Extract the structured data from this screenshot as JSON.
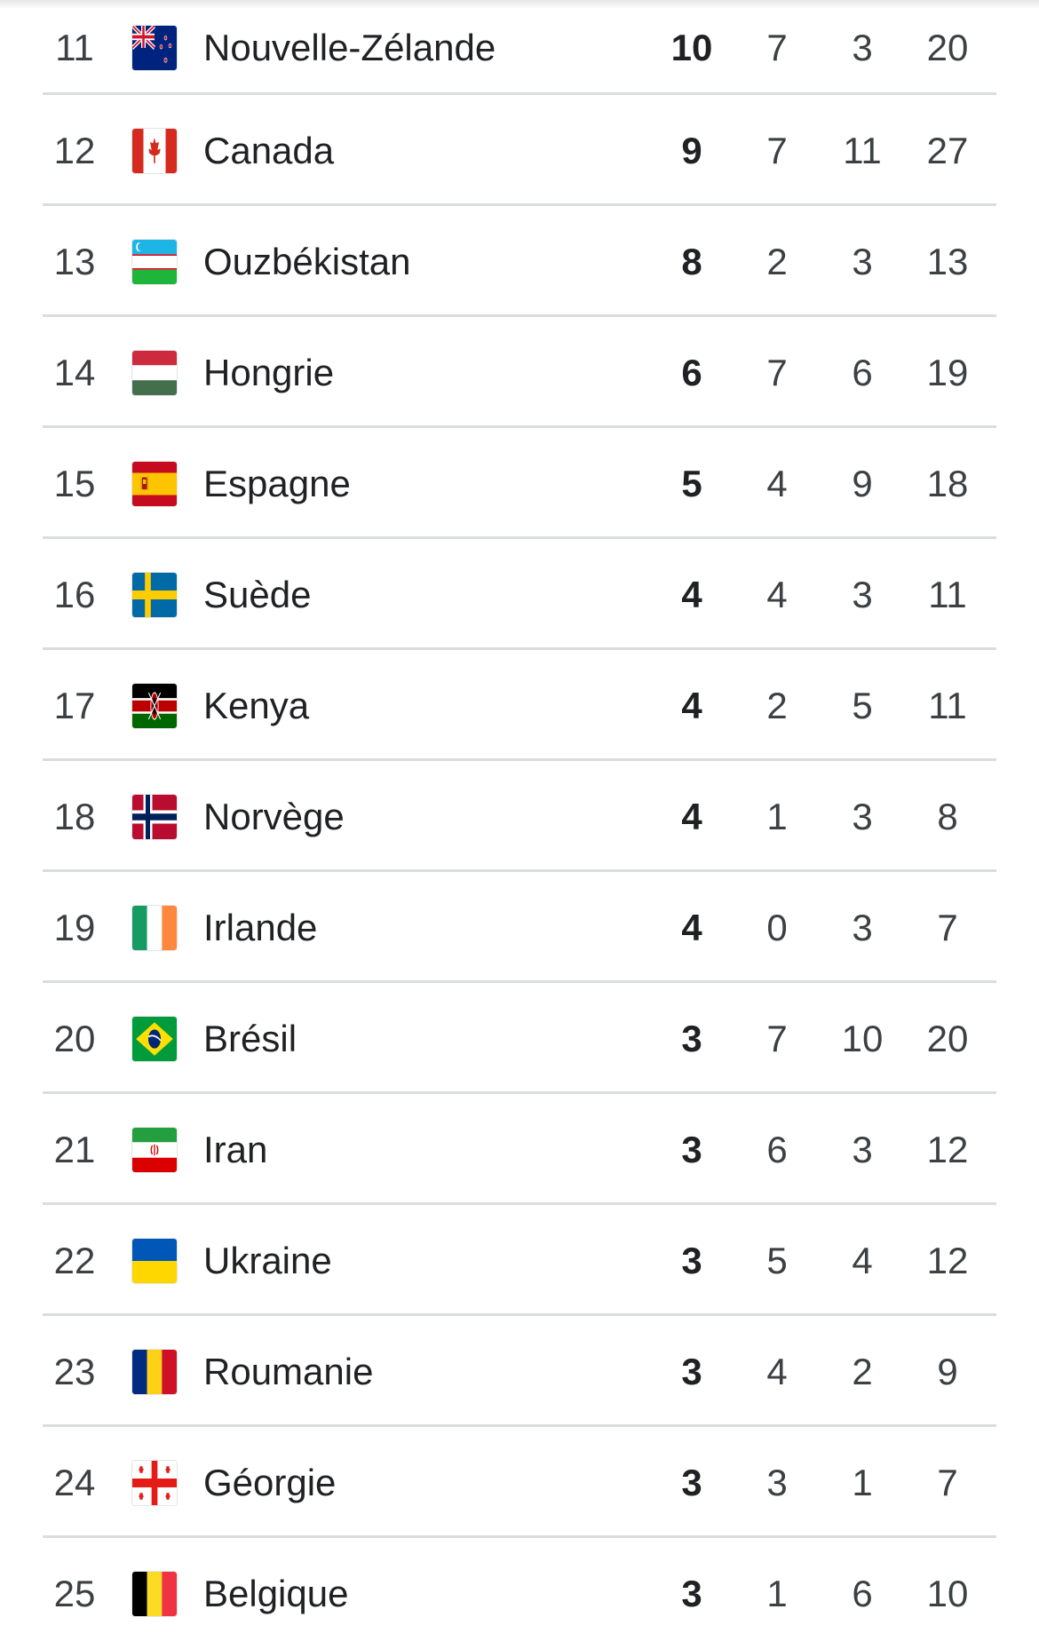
{
  "medal_table": {
    "rows": [
      {
        "rank": "11",
        "country": "Nouvelle-Zélande",
        "flag": "new-zealand",
        "gold": "10",
        "silver": "7",
        "bronze": "3",
        "total": "20"
      },
      {
        "rank": "12",
        "country": "Canada",
        "flag": "canada",
        "gold": "9",
        "silver": "7",
        "bronze": "11",
        "total": "27"
      },
      {
        "rank": "13",
        "country": "Ouzbékistan",
        "flag": "uzbekistan",
        "gold": "8",
        "silver": "2",
        "bronze": "3",
        "total": "13"
      },
      {
        "rank": "14",
        "country": "Hongrie",
        "flag": "hungary",
        "gold": "6",
        "silver": "7",
        "bronze": "6",
        "total": "19"
      },
      {
        "rank": "15",
        "country": "Espagne",
        "flag": "spain",
        "gold": "5",
        "silver": "4",
        "bronze": "9",
        "total": "18"
      },
      {
        "rank": "16",
        "country": "Suède",
        "flag": "sweden",
        "gold": "4",
        "silver": "4",
        "bronze": "3",
        "total": "11"
      },
      {
        "rank": "17",
        "country": "Kenya",
        "flag": "kenya",
        "gold": "4",
        "silver": "2",
        "bronze": "5",
        "total": "11"
      },
      {
        "rank": "18",
        "country": "Norvège",
        "flag": "norway",
        "gold": "4",
        "silver": "1",
        "bronze": "3",
        "total": "8"
      },
      {
        "rank": "19",
        "country": "Irlande",
        "flag": "ireland",
        "gold": "4",
        "silver": "0",
        "bronze": "3",
        "total": "7"
      },
      {
        "rank": "20",
        "country": "Brésil",
        "flag": "brazil",
        "gold": "3",
        "silver": "7",
        "bronze": "10",
        "total": "20"
      },
      {
        "rank": "21",
        "country": "Iran",
        "flag": "iran",
        "gold": "3",
        "silver": "6",
        "bronze": "3",
        "total": "12"
      },
      {
        "rank": "22",
        "country": "Ukraine",
        "flag": "ukraine",
        "gold": "3",
        "silver": "5",
        "bronze": "4",
        "total": "12"
      },
      {
        "rank": "23",
        "country": "Roumanie",
        "flag": "romania",
        "gold": "3",
        "silver": "4",
        "bronze": "2",
        "total": "9"
      },
      {
        "rank": "24",
        "country": "Géorgie",
        "flag": "georgia",
        "gold": "3",
        "silver": "3",
        "bronze": "1",
        "total": "7"
      },
      {
        "rank": "25",
        "country": "Belgique",
        "flag": "belgium",
        "gold": "3",
        "silver": "1",
        "bronze": "6",
        "total": "10"
      }
    ]
  }
}
